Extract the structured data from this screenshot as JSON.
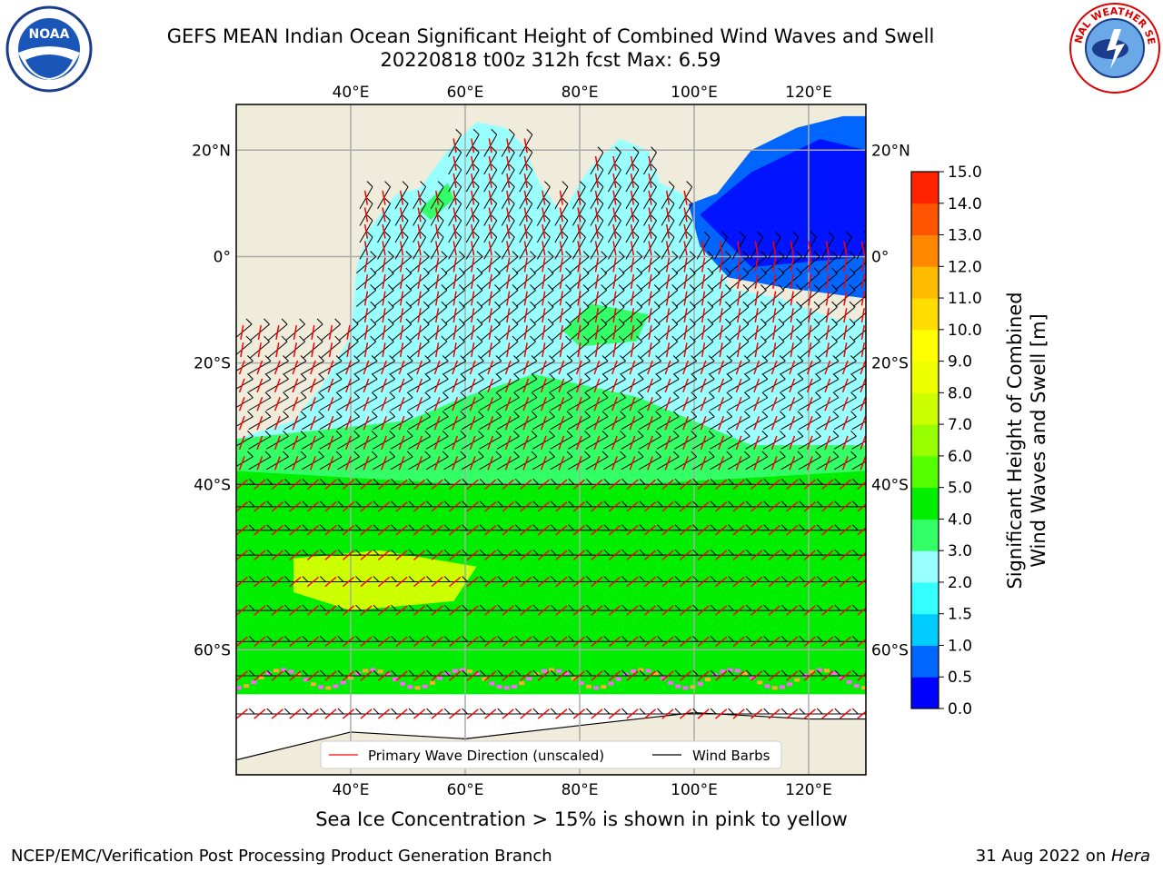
{
  "title": {
    "line1": "GEFS MEAN Indian Ocean Significant Height of Combined Wind Waves and Swell",
    "line2": "20220818 t00z 312h fcst   Max: 6.59"
  },
  "logos": {
    "left": "noaa-logo",
    "right": "nws-logo",
    "right_text": "NATIONAL WEATHER SERVICE"
  },
  "axes": {
    "lon_ticks": [
      "40°E",
      "60°E",
      "80°E",
      "100°E",
      "120°E"
    ],
    "lat_ticks": [
      "20°N",
      "0°",
      "20°S",
      "40°S",
      "60°S"
    ],
    "lon_range": [
      20,
      130
    ],
    "lat_range": [
      -70,
      28
    ]
  },
  "legend": {
    "wave_label": "Primary Wave Direction (unscaled)",
    "wind_label": "Wind Barbs"
  },
  "colorbar": {
    "label_line1": "Significant Height of Combined",
    "label_line2": "Wind Waves and Swell [m]",
    "ticks": [
      "15.0",
      "14.0",
      "13.0",
      "12.0",
      "11.0",
      "10.0",
      "9.0",
      "8.0",
      "7.0",
      "6.0",
      "5.0",
      "4.0",
      "3.0",
      "2.0",
      "1.5",
      "1.0",
      "0.5",
      "0.0"
    ],
    "colors": [
      "#0000ff",
      "#0066ff",
      "#00ccff",
      "#33ffff",
      "#99ffff",
      "#33ff66",
      "#00ee00",
      "#55ff00",
      "#99ff00",
      "#ccff00",
      "#eeff00",
      "#ffff00",
      "#ffdd00",
      "#ffbb00",
      "#ff8800",
      "#ff5500",
      "#ff2200"
    ]
  },
  "footer": {
    "ice_note": "Sea Ice Concentration > 15% is shown in pink to yellow",
    "credit": "NCEP/EMC/Verification Post Processing Product Generation Branch",
    "date": "31 Aug 2022 on ",
    "machine": "Hera"
  },
  "colors": {
    "land": "#efecdc",
    "ocean_low": "#99ffff",
    "ocean_mid": "#33ff66",
    "ocean_high": "#00ee00",
    "ocean_peak": "#ccff00",
    "ice": "#ff66ff",
    "wave_arrow": "#ff0000",
    "barb": "#000000"
  }
}
